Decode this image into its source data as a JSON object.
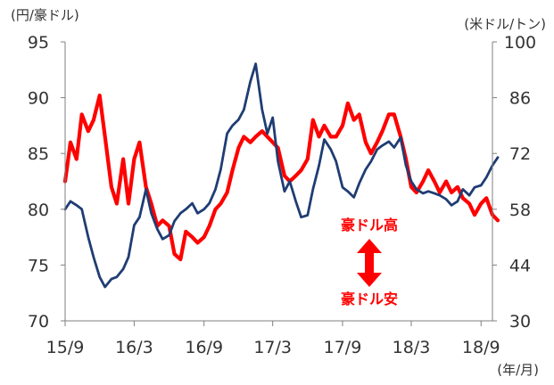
{
  "chart_data": {
    "type": "line",
    "y_left_unit": "(円/豪ドル)",
    "y_right_unit": "(米ドル/トン)",
    "x_unit": "(年/月)",
    "x_ticks": [
      "15/9",
      "16/3",
      "16/9",
      "17/3",
      "17/9",
      "18/3",
      "18/9"
    ],
    "y_left_ticks": [
      "95",
      "90",
      "85",
      "80",
      "75",
      "70"
    ],
    "y_right_ticks": [
      "100",
      "86",
      "72",
      "58",
      "44",
      "30"
    ],
    "y_left_range": [
      70,
      95
    ],
    "y_right_range": [
      30,
      100
    ],
    "x_range": [
      "2015-09",
      "2018-10"
    ],
    "grid": false,
    "annotation_up": "豪ドル高",
    "annotation_down": "豪ドル安",
    "series": [
      {
        "axis": "left",
        "color": "#ff0000",
        "points": [
          [
            "2015-09-01",
            82.5
          ],
          [
            "2015-09-15",
            86.0
          ],
          [
            "2015-10-01",
            84.5
          ],
          [
            "2015-10-15",
            88.5
          ],
          [
            "2015-11-01",
            87.0
          ],
          [
            "2015-11-15",
            88.0
          ],
          [
            "2015-12-01",
            90.2
          ],
          [
            "2015-12-15",
            86.5
          ],
          [
            "2016-01-01",
            82.0
          ],
          [
            "2016-01-15",
            80.5
          ],
          [
            "2016-02-01",
            84.5
          ],
          [
            "2016-02-15",
            80.5
          ],
          [
            "2016-03-01",
            84.5
          ],
          [
            "2016-03-15",
            86.0
          ],
          [
            "2016-04-01",
            82.0
          ],
          [
            "2016-04-15",
            80.5
          ],
          [
            "2016-05-01",
            78.5
          ],
          [
            "2016-05-15",
            79.0
          ],
          [
            "2016-06-01",
            78.5
          ],
          [
            "2016-06-15",
            76.0
          ],
          [
            "2016-07-01",
            75.5
          ],
          [
            "2016-07-15",
            78.0
          ],
          [
            "2016-08-01",
            77.5
          ],
          [
            "2016-08-15",
            77.0
          ],
          [
            "2016-09-01",
            77.5
          ],
          [
            "2016-09-15",
            78.5
          ],
          [
            "2016-10-01",
            80.0
          ],
          [
            "2016-10-15",
            80.5
          ],
          [
            "2016-11-01",
            81.5
          ],
          [
            "2016-11-15",
            83.5
          ],
          [
            "2016-12-01",
            85.5
          ],
          [
            "2016-12-15",
            86.5
          ],
          [
            "2017-01-01",
            86.0
          ],
          [
            "2017-01-15",
            86.5
          ],
          [
            "2017-02-01",
            87.0
          ],
          [
            "2017-02-15",
            86.5
          ],
          [
            "2017-03-01",
            86.0
          ],
          [
            "2017-03-15",
            85.5
          ],
          [
            "2017-04-01",
            83.0
          ],
          [
            "2017-04-15",
            82.5
          ],
          [
            "2017-05-01",
            83.0
          ],
          [
            "2017-05-15",
            83.5
          ],
          [
            "2017-06-01",
            84.5
          ],
          [
            "2017-06-15",
            88.0
          ],
          [
            "2017-07-01",
            86.5
          ],
          [
            "2017-07-15",
            87.5
          ],
          [
            "2017-08-01",
            86.5
          ],
          [
            "2017-08-15",
            86.5
          ],
          [
            "2017-09-01",
            87.5
          ],
          [
            "2017-09-15",
            89.5
          ],
          [
            "2017-10-01",
            88.0
          ],
          [
            "2017-10-15",
            88.5
          ],
          [
            "2017-11-01",
            86.0
          ],
          [
            "2017-11-15",
            85.0
          ],
          [
            "2017-12-01",
            86.0
          ],
          [
            "2017-12-15",
            87.0
          ],
          [
            "2018-01-01",
            88.5
          ],
          [
            "2018-01-15",
            88.5
          ],
          [
            "2018-02-01",
            86.5
          ],
          [
            "2018-02-15",
            84.5
          ],
          [
            "2018-03-01",
            82.0
          ],
          [
            "2018-03-15",
            81.5
          ],
          [
            "2018-04-01",
            82.5
          ],
          [
            "2018-04-15",
            83.5
          ],
          [
            "2018-05-01",
            82.5
          ],
          [
            "2018-05-15",
            81.5
          ],
          [
            "2018-06-01",
            82.5
          ],
          [
            "2018-06-15",
            81.5
          ],
          [
            "2018-07-01",
            82.0
          ],
          [
            "2018-07-15",
            81.0
          ],
          [
            "2018-08-01",
            80.5
          ],
          [
            "2018-08-15",
            79.5
          ],
          [
            "2018-09-01",
            80.5
          ],
          [
            "2018-09-15",
            81.0
          ],
          [
            "2018-10-01",
            79.5
          ],
          [
            "2018-10-15",
            79.0
          ]
        ]
      },
      {
        "axis": "right",
        "color": "#1f3d73",
        "points": [
          [
            "2015-09-01",
            58.0
          ],
          [
            "2015-09-15",
            60.0
          ],
          [
            "2015-10-01",
            59.0
          ],
          [
            "2015-10-15",
            58.0
          ],
          [
            "2015-11-01",
            51.0
          ],
          [
            "2015-11-15",
            46.0
          ],
          [
            "2015-12-01",
            41.0
          ],
          [
            "2015-12-15",
            38.5
          ],
          [
            "2016-01-01",
            40.5
          ],
          [
            "2016-01-15",
            41.0
          ],
          [
            "2016-02-01",
            43.0
          ],
          [
            "2016-02-15",
            46.0
          ],
          [
            "2016-03-01",
            54.0
          ],
          [
            "2016-03-15",
            56.0
          ],
          [
            "2016-04-01",
            63.0
          ],
          [
            "2016-04-15",
            57.0
          ],
          [
            "2016-05-01",
            53.0
          ],
          [
            "2016-05-15",
            50.5
          ],
          [
            "2016-06-01",
            51.5
          ],
          [
            "2016-06-15",
            55.0
          ],
          [
            "2016-07-01",
            57.0
          ],
          [
            "2016-07-15",
            58.0
          ],
          [
            "2016-08-01",
            59.5
          ],
          [
            "2016-08-15",
            57.0
          ],
          [
            "2016-09-01",
            58.0
          ],
          [
            "2016-09-15",
            59.5
          ],
          [
            "2016-10-01",
            63.0
          ],
          [
            "2016-10-15",
            68.0
          ],
          [
            "2016-11-01",
            77.0
          ],
          [
            "2016-11-15",
            79.0
          ],
          [
            "2016-12-01",
            80.5
          ],
          [
            "2016-12-15",
            83.0
          ],
          [
            "2017-01-01",
            90.0
          ],
          [
            "2017-01-15",
            94.5
          ],
          [
            "2017-02-01",
            83.0
          ],
          [
            "2017-02-15",
            77.0
          ],
          [
            "2017-03-01",
            81.0
          ],
          [
            "2017-03-15",
            70.0
          ],
          [
            "2017-04-01",
            62.5
          ],
          [
            "2017-04-15",
            65.0
          ],
          [
            "2017-05-01",
            60.0
          ],
          [
            "2017-05-15",
            56.0
          ],
          [
            "2017-06-01",
            56.5
          ],
          [
            "2017-06-15",
            63.0
          ],
          [
            "2017-07-01",
            69.0
          ],
          [
            "2017-07-15",
            75.5
          ],
          [
            "2017-08-01",
            73.0
          ],
          [
            "2017-08-15",
            70.0
          ],
          [
            "2017-09-01",
            63.5
          ],
          [
            "2017-09-15",
            62.5
          ],
          [
            "2017-10-01",
            61.0
          ],
          [
            "2017-10-15",
            64.5
          ],
          [
            "2017-11-01",
            68.0
          ],
          [
            "2017-11-15",
            70.0
          ],
          [
            "2017-12-01",
            73.0
          ],
          [
            "2017-12-15",
            74.0
          ],
          [
            "2018-01-01",
            75.0
          ],
          [
            "2018-01-15",
            73.5
          ],
          [
            "2018-02-01",
            76.0
          ],
          [
            "2018-02-15",
            69.0
          ],
          [
            "2018-03-01",
            65.0
          ],
          [
            "2018-03-15",
            63.0
          ],
          [
            "2018-04-01",
            62.0
          ],
          [
            "2018-04-15",
            62.5
          ],
          [
            "2018-05-01",
            62.0
          ],
          [
            "2018-05-15",
            61.5
          ],
          [
            "2018-06-01",
            60.5
          ],
          [
            "2018-06-15",
            59.0
          ],
          [
            "2018-07-01",
            60.0
          ],
          [
            "2018-07-15",
            63.0
          ],
          [
            "2018-08-01",
            61.5
          ],
          [
            "2018-08-15",
            63.5
          ],
          [
            "2018-09-01",
            64.0
          ],
          [
            "2018-09-15",
            66.0
          ],
          [
            "2018-10-01",
            69.0
          ],
          [
            "2018-10-15",
            71.0
          ]
        ]
      }
    ]
  }
}
